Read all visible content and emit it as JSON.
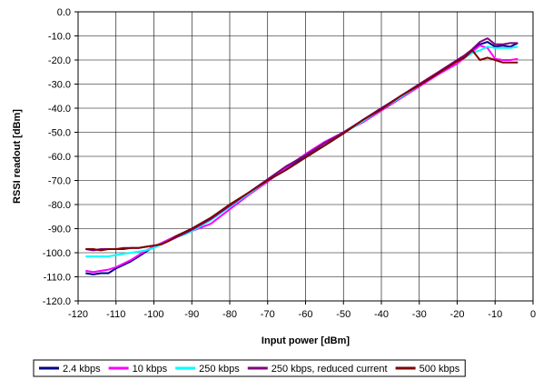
{
  "chart_data": {
    "type": "line",
    "xlabel": "Input power [dBm]",
    "ylabel": "RSSI readout [dBm]",
    "xlim": [
      -120,
      0
    ],
    "ylim": [
      -120,
      0
    ],
    "x_ticks": [
      "-120",
      "-110",
      "-100",
      "-90",
      "-80",
      "-70",
      "-60",
      "-50",
      "-40",
      "-30",
      "-20",
      "-10",
      "0"
    ],
    "y_ticks": [
      "0.0",
      "-10.0",
      "-20.0",
      "-30.0",
      "-40.0",
      "-50.0",
      "-60.0",
      "-70.0",
      "-80.0",
      "-90.0",
      "-100.0",
      "-110.0",
      "-120.0"
    ],
    "grid": true,
    "legend_position": "bottom",
    "series": [
      {
        "name": "2.4 kbps",
        "color": "#00008b",
        "points": [
          [
            -118,
            -108.5
          ],
          [
            -116,
            -109
          ],
          [
            -114,
            -108.5
          ],
          [
            -112,
            -108.5
          ],
          [
            -110,
            -106.5
          ],
          [
            -108,
            -105
          ],
          [
            -106,
            -103.5
          ],
          [
            -104,
            -101.5
          ],
          [
            -102,
            -99.5
          ],
          [
            -100,
            -97.5
          ],
          [
            -98,
            -96
          ],
          [
            -96,
            -94.5
          ],
          [
            -94,
            -93
          ],
          [
            -92,
            -91.5
          ],
          [
            -90,
            -90
          ],
          [
            -85,
            -85.5
          ],
          [
            -80,
            -81
          ],
          [
            -75,
            -75.5
          ],
          [
            -70,
            -70
          ],
          [
            -65,
            -65
          ],
          [
            -60,
            -60
          ],
          [
            -55,
            -55.5
          ],
          [
            -50,
            -50.5
          ],
          [
            -45,
            -45
          ],
          [
            -40,
            -40
          ],
          [
            -35,
            -35.5
          ],
          [
            -30,
            -30.5
          ],
          [
            -25,
            -25.5
          ],
          [
            -20,
            -20.5
          ],
          [
            -18,
            -18.5
          ],
          [
            -16,
            -16
          ],
          [
            -14,
            -13.5
          ],
          [
            -12,
            -12.5
          ],
          [
            -10,
            -14.5
          ],
          [
            -8,
            -14
          ],
          [
            -6,
            -14.5
          ],
          [
            -4,
            -13
          ]
        ]
      },
      {
        "name": "10 kbps",
        "color": "#ff00ff",
        "points": [
          [
            -118,
            -107.5
          ],
          [
            -116,
            -108
          ],
          [
            -114,
            -107.5
          ],
          [
            -112,
            -107
          ],
          [
            -110,
            -106
          ],
          [
            -108,
            -104.5
          ],
          [
            -106,
            -103
          ],
          [
            -104,
            -101
          ],
          [
            -102,
            -99
          ],
          [
            -100,
            -97.5
          ],
          [
            -98,
            -96
          ],
          [
            -96,
            -94.5
          ],
          [
            -94,
            -93
          ],
          [
            -92,
            -92
          ],
          [
            -90,
            -91
          ],
          [
            -85,
            -88
          ],
          [
            -80,
            -82
          ],
          [
            -75,
            -76
          ],
          [
            -70,
            -70.5
          ],
          [
            -65,
            -64.5
          ],
          [
            -60,
            -59
          ],
          [
            -55,
            -54
          ],
          [
            -50,
            -50
          ],
          [
            -45,
            -46
          ],
          [
            -40,
            -41
          ],
          [
            -35,
            -36
          ],
          [
            -30,
            -31
          ],
          [
            -25,
            -26
          ],
          [
            -20,
            -21.5
          ],
          [
            -18,
            -19
          ],
          [
            -16,
            -16.5
          ],
          [
            -14,
            -14
          ],
          [
            -12,
            -15
          ],
          [
            -10,
            -19.5
          ],
          [
            -8,
            -20
          ],
          [
            -6,
            -20
          ],
          [
            -4,
            -19.5
          ]
        ]
      },
      {
        "name": "250 kbps",
        "color": "#00ffff",
        "points": [
          [
            -118,
            -101.5
          ],
          [
            -116,
            -101.5
          ],
          [
            -114,
            -101.5
          ],
          [
            -112,
            -101.5
          ],
          [
            -110,
            -101
          ],
          [
            -108,
            -100.5
          ],
          [
            -106,
            -100
          ],
          [
            -104,
            -99.5
          ],
          [
            -102,
            -99
          ],
          [
            -100,
            -98
          ],
          [
            -98,
            -96.5
          ],
          [
            -96,
            -95
          ],
          [
            -94,
            -93.5
          ],
          [
            -92,
            -92.5
          ],
          [
            -90,
            -91
          ],
          [
            -85,
            -86.5
          ],
          [
            -80,
            -81
          ],
          [
            -75,
            -75.5
          ],
          [
            -70,
            -70
          ],
          [
            -65,
            -65.5
          ],
          [
            -60,
            -60.5
          ],
          [
            -55,
            -55.5
          ],
          [
            -50,
            -50.5
          ],
          [
            -45,
            -45.5
          ],
          [
            -40,
            -40.5
          ],
          [
            -35,
            -35.5
          ],
          [
            -30,
            -30.5
          ],
          [
            -25,
            -25.5
          ],
          [
            -20,
            -20.5
          ],
          [
            -18,
            -19
          ],
          [
            -16,
            -17
          ],
          [
            -14,
            -16
          ],
          [
            -12,
            -14.5
          ],
          [
            -10,
            -15
          ],
          [
            -8,
            -15
          ],
          [
            -6,
            -15
          ],
          [
            -4,
            -14.5
          ]
        ]
      },
      {
        "name": "250 kbps, reduced current",
        "color": "#800080",
        "points": [
          [
            -118,
            -98.5
          ],
          [
            -116,
            -99
          ],
          [
            -114,
            -98.5
          ],
          [
            -112,
            -98.5
          ],
          [
            -110,
            -98.5
          ],
          [
            -108,
            -98
          ],
          [
            -106,
            -98
          ],
          [
            -104,
            -98
          ],
          [
            -102,
            -97.5
          ],
          [
            -100,
            -97
          ],
          [
            -98,
            -96.5
          ],
          [
            -96,
            -95
          ],
          [
            -94,
            -93.5
          ],
          [
            -92,
            -92
          ],
          [
            -90,
            -90.5
          ],
          [
            -85,
            -86
          ],
          [
            -80,
            -80.5
          ],
          [
            -75,
            -75
          ],
          [
            -70,
            -69.5
          ],
          [
            -65,
            -64
          ],
          [
            -60,
            -59.5
          ],
          [
            -55,
            -54.5
          ],
          [
            -50,
            -50
          ],
          [
            -45,
            -45
          ],
          [
            -40,
            -40
          ],
          [
            -35,
            -35
          ],
          [
            -30,
            -30
          ],
          [
            -25,
            -25
          ],
          [
            -20,
            -20
          ],
          [
            -18,
            -18
          ],
          [
            -16,
            -15.5
          ],
          [
            -14,
            -12.5
          ],
          [
            -12,
            -11
          ],
          [
            -10,
            -13.5
          ],
          [
            -8,
            -13.5
          ],
          [
            -6,
            -13
          ],
          [
            -4,
            -13
          ]
        ]
      },
      {
        "name": "500 kbps",
        "color": "#800000",
        "points": [
          [
            -118,
            -98.5
          ],
          [
            -116,
            -98.5
          ],
          [
            -114,
            -99
          ],
          [
            -112,
            -98.5
          ],
          [
            -110,
            -98.5
          ],
          [
            -108,
            -98.5
          ],
          [
            -106,
            -98
          ],
          [
            -104,
            -98
          ],
          [
            -102,
            -97.5
          ],
          [
            -100,
            -97
          ],
          [
            -98,
            -96.5
          ],
          [
            -96,
            -95
          ],
          [
            -94,
            -93
          ],
          [
            -92,
            -91.5
          ],
          [
            -90,
            -90
          ],
          [
            -85,
            -85.5
          ],
          [
            -80,
            -80
          ],
          [
            -75,
            -75
          ],
          [
            -70,
            -70
          ],
          [
            -65,
            -65.5
          ],
          [
            -60,
            -60.5
          ],
          [
            -55,
            -55.5
          ],
          [
            -50,
            -50.5
          ],
          [
            -45,
            -45
          ],
          [
            -40,
            -40.5
          ],
          [
            -35,
            -35
          ],
          [
            -30,
            -30.5
          ],
          [
            -25,
            -25.5
          ],
          [
            -20,
            -20.5
          ],
          [
            -18,
            -19
          ],
          [
            -16,
            -16
          ],
          [
            -14,
            -20
          ],
          [
            -12,
            -19
          ],
          [
            -10,
            -20
          ],
          [
            -8,
            -21
          ],
          [
            -6,
            -21
          ],
          [
            -4,
            -21
          ]
        ]
      }
    ]
  }
}
